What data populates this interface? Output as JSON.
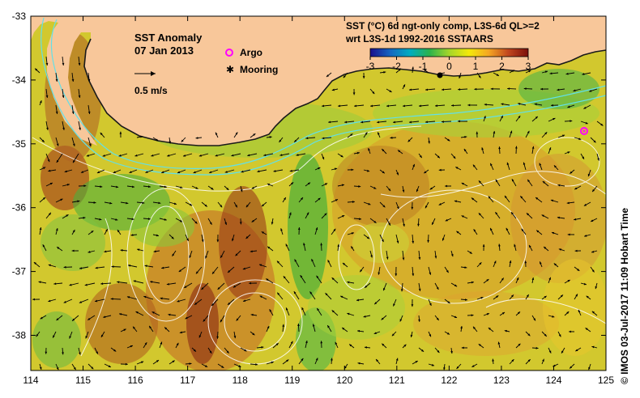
{
  "title": "SST Anomaly",
  "date": "07 Jan 2013",
  "scale_label": "0.5 m/s",
  "legend": {
    "argo_label": "Argo",
    "mooring_label": "Mooring",
    "argo_color": "#ff00ff",
    "mooring_color": "#000000"
  },
  "colorbar": {
    "title_line1": "SST (°C) 6d ngt-only comp, L3S-6d QL>=2",
    "title_line2": "wrt L3S-1d 1992-2016 SSTAARS",
    "min": -3,
    "max": 3,
    "ticks": [
      "-3",
      "-2",
      "-1",
      "0",
      "1",
      "2",
      "3"
    ],
    "colors": [
      "#1a0f8c",
      "#1565c0",
      "#00acc1",
      "#2bb24c",
      "#a5d62a",
      "#f4e90a",
      "#f5a623",
      "#c0461e",
      "#7a0f0a"
    ]
  },
  "axes": {
    "x_ticks": [
      "114",
      "115",
      "116",
      "117",
      "118",
      "119",
      "120",
      "121",
      "122",
      "123",
      "124",
      "125"
    ],
    "y_ticks": [
      "-33",
      "-34",
      "-35",
      "-36",
      "-37",
      "-38"
    ]
  },
  "land_color": "#f8c79a",
  "credit": "©  IMOS 03-Jul-2017 11:09 Hobart Time"
}
